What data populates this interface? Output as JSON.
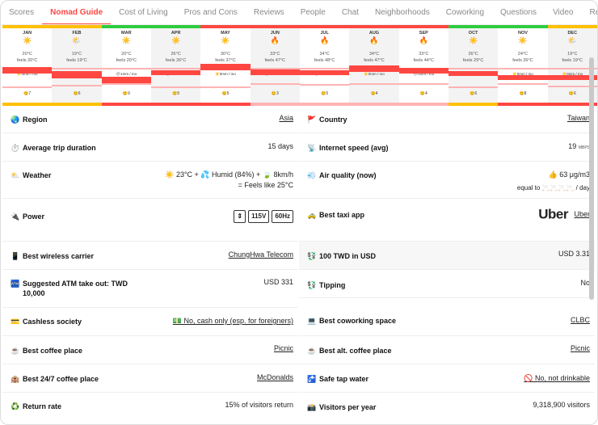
{
  "tabs": [
    "Scores",
    "Nomad Guide",
    "Cost of Living",
    "Pros and Cons",
    "Reviews",
    "People",
    "Chat",
    "Neighborhoods",
    "Coworking",
    "Questions",
    "Video",
    "Remote Jobs"
  ],
  "active_tab_index": 1,
  "months": [
    {
      "name": "JAN",
      "icon": "☀️",
      "temp": "20°C",
      "feels": "feels 20°C",
      "air": "😊7"
    },
    {
      "name": "FEB",
      "icon": "🌤️",
      "temp": "19°C",
      "feels": "feels 19°C",
      "air": "😊6"
    },
    {
      "name": "MAR",
      "icon": "☀️",
      "temp": "20°C",
      "feels": "feels 20°C",
      "air": "😊9"
    },
    {
      "name": "APR",
      "icon": "☀️",
      "temp": "26°C",
      "feels": "feels 26°C",
      "air": "😊5"
    },
    {
      "name": "MAY",
      "icon": "☀️",
      "temp": "30°C",
      "feels": "feels 37°C",
      "air": "😊5"
    },
    {
      "name": "JUN",
      "icon": "🔥",
      "temp": "33°C",
      "feels": "feels 47°C",
      "air": "😊3"
    },
    {
      "name": "JUL",
      "icon": "🔥",
      "temp": "34°C",
      "feels": "feels 48°C",
      "air": "😊5"
    },
    {
      "name": "AUG",
      "icon": "🔥",
      "temp": "34°C",
      "feels": "feels 47°C",
      "air": "😊4"
    },
    {
      "name": "SEP",
      "icon": "🔥",
      "temp": "33°C",
      "feels": "feels 44°C",
      "air": "😊4"
    },
    {
      "name": "OCT",
      "icon": "☀️",
      "temp": "26°C",
      "feels": "feels 29°C",
      "air": "😊6"
    },
    {
      "name": "NOV",
      "icon": "☀️",
      "temp": "24°C",
      "feels": "feels 26°C",
      "air": "😊8"
    },
    {
      "name": "DEC",
      "icon": "🌤️",
      "temp": "19°C",
      "feels": "feels 19°C",
      "air": "😊6"
    }
  ],
  "rain_labels": [
    "☀️0mm / mo",
    "☀️0mm / mo",
    "🌧1mm / mo",
    "🌧1mm / mo",
    "☀️0mm / mo",
    "🌧1mm / mo",
    "🌧1mm / mo",
    "☀️0mm / mo",
    "🌧1mm / mo",
    "🌧1mm / mo",
    "☀️0mm / mo",
    "☀️0mm / mo"
  ],
  "left": {
    "region": {
      "icon": "🌏",
      "label": "Region",
      "value": "Asia"
    },
    "trip": {
      "icon": "⏱️",
      "label": "Average trip duration",
      "value": "15 days"
    },
    "weather": {
      "icon": "⛅",
      "label": "Weather",
      "line1": "☀️ 23°C + 💦 Humid (84%) + 🍃 8km/h",
      "line2": "= Feels like 25°C"
    },
    "power": {
      "icon": "🔌",
      "label": "Power",
      "plug1": "⇕",
      "plug2": "115V",
      "plug3": "60Hz"
    },
    "wireless": {
      "icon": "📱",
      "label": "Best wireless carrier",
      "value": "ChungHwa Telecom"
    },
    "atm": {
      "icon": "🏧",
      "label": "Suggested ATM take out: TWD 10,000",
      "value": "USD 331"
    },
    "cashless": {
      "icon": "💳",
      "label": "Cashless society",
      "value": "💵 No, cash only (esp. for foreigners)"
    },
    "coffee": {
      "icon": "☕",
      "label": "Best coffee place",
      "value": "Picnic"
    },
    "coffee247": {
      "icon": "🏨",
      "label": "Best 24/7 coffee place",
      "value": "McDonalds"
    },
    "return": {
      "icon": "♻️",
      "label": "Return rate",
      "value": "15% of visitors return"
    }
  },
  "right": {
    "country": {
      "icon": "🚩",
      "label": "Country",
      "value": "Taiwan"
    },
    "internet": {
      "icon": "📡",
      "label": "Internet speed (avg)",
      "value": "19",
      "unit": "MBPS"
    },
    "air": {
      "icon": "💨",
      "label": "Air quality (now)",
      "line1": "👍 63 μg/m3",
      "line2_pre": "equal to",
      "line2_mid": "🚬🚬🚬🚬",
      "line2_post": "/ day"
    },
    "taxi": {
      "icon": "🚕",
      "label": "Best taxi app",
      "logo": "Uber",
      "value": "Uber"
    },
    "twd": {
      "icon": "💱",
      "label": "100 TWD in USD",
      "value": "USD 3.31"
    },
    "tipping": {
      "icon": "💱",
      "label": "Tipping",
      "value": "No"
    },
    "cowork": {
      "icon": "💻",
      "label": "Best coworking space",
      "value": "CLBC"
    },
    "altcoffee": {
      "icon": "☕",
      "label": "Best alt. coffee place",
      "value": "Picnic"
    },
    "tap": {
      "icon": "🚰",
      "label": "Safe tap water",
      "value": "🚫 No, not drinkable"
    },
    "visitors": {
      "icon": "📸",
      "label": "Visitors per year",
      "value": "9,318,900 visitors"
    }
  },
  "colors": {
    "accent": "#ff4742",
    "green": "#2ecc40",
    "yellow": "#ffc000"
  }
}
